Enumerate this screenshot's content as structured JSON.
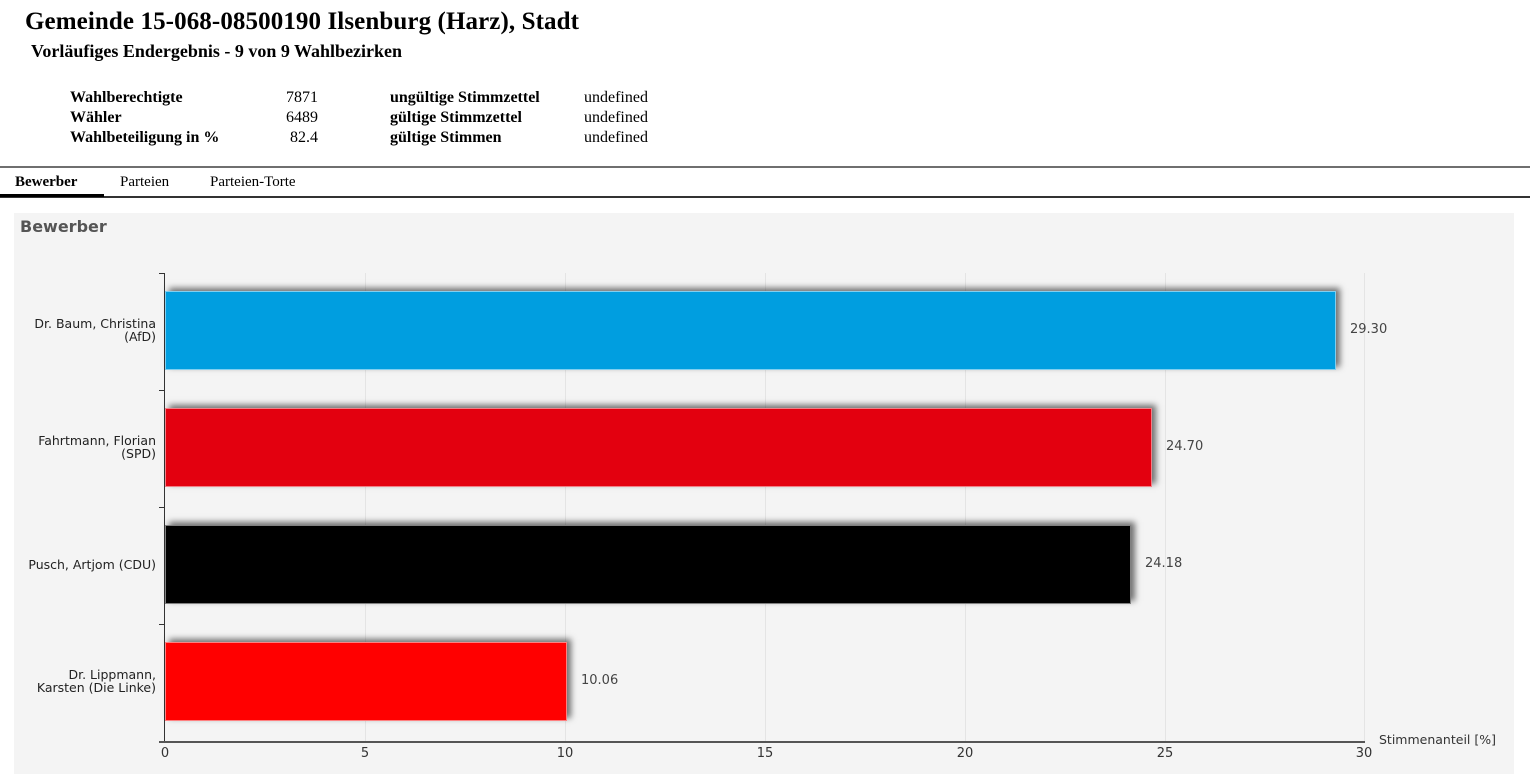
{
  "header": {
    "title": "Gemeinde 15-068-08500190 Ilsenburg (Harz), Stadt",
    "subtitle": "Vorläufiges Endergebnis - 9 von 9 Wahlbezirken"
  },
  "stats": [
    {
      "label": "Wahlberechtigte",
      "value": "7871",
      "label2": "ungültige Stimmzettel",
      "value2": "undefined"
    },
    {
      "label": "Wähler",
      "value": "6489",
      "label2": "gültige Stimmzettel",
      "value2": "undefined"
    },
    {
      "label": "Wahlbeteiligung in %",
      "value": "82.4",
      "label2": "gültige Stimmen",
      "value2": "undefined"
    }
  ],
  "tabs": [
    {
      "label": "Bewerber",
      "active": true
    },
    {
      "label": "Parteien",
      "active": false
    },
    {
      "label": "Parteien-Torte",
      "active": false
    }
  ],
  "panel": {
    "title": "Bewerber"
  },
  "chart_data": {
    "type": "bar",
    "orientation": "horizontal",
    "title": "Bewerber",
    "categories": [
      "Dr. Baum, Christina (AfD)",
      "Fahrtmann, Florian (SPD)",
      "Pusch, Artjom (CDU)",
      "Dr. Lippmann, Karsten (Die Linke)"
    ],
    "category_lines": [
      [
        "Dr.  Baum,  Christina",
        "(AfD)"
      ],
      [
        "Fahrtmann,  Florian",
        "(SPD)"
      ],
      [
        "Pusch,  Artjom  (CDU)"
      ],
      [
        "Dr.  Lippmann,",
        "Karsten  (Die Linke)"
      ]
    ],
    "values": [
      29.3,
      24.7,
      24.18,
      10.06
    ],
    "value_labels": [
      "29.30",
      "24.70",
      "24.18",
      "10.06"
    ],
    "colors": [
      "#009ee0",
      "#e3000f",
      "#000000",
      "#ff0000"
    ],
    "xlabel": "Stimmenanteil [%]",
    "ylabel": "",
    "xlim": [
      0,
      30
    ],
    "xticks": [
      "0",
      "5",
      "10",
      "15",
      "20",
      "25",
      "30"
    ],
    "grid": true,
    "legend": "none"
  }
}
